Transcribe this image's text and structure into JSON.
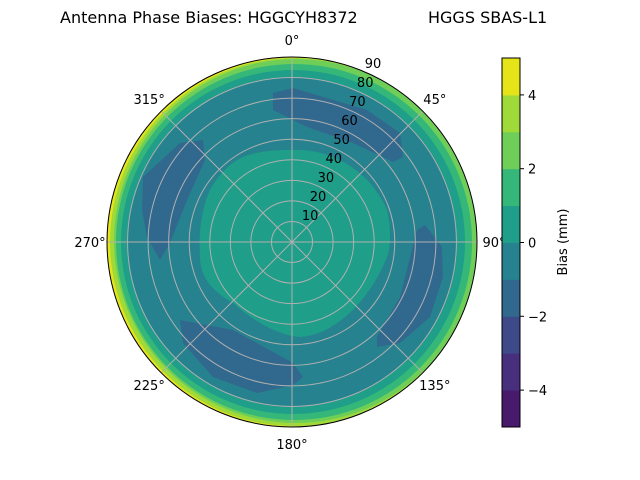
{
  "chart_data": {
    "type": "heatmap",
    "projection": "polar",
    "title": "Antenna Phase Biases: HGGCYH8372",
    "subtitle": "HGGS SBAS-L1",
    "angle_ticks": [
      "0°",
      "45°",
      "90°",
      "135°",
      "180°",
      "225°",
      "270°",
      "315°"
    ],
    "angle_values": [
      0,
      45,
      90,
      135,
      180,
      225,
      270,
      315
    ],
    "angle_direction": "clockwise",
    "angle_zero": "top",
    "radial_ticks": [
      "10",
      "20",
      "30",
      "40",
      "50",
      "60",
      "70",
      "80",
      "90"
    ],
    "radial_values": [
      10,
      20,
      30,
      40,
      50,
      60,
      70,
      80,
      90
    ],
    "rlim": [
      0,
      90
    ],
    "grid": true,
    "colorbar": {
      "label": "Bias (mm)",
      "range": [
        -5,
        5
      ],
      "levels": [
        -5,
        -4,
        -3,
        -2,
        -1,
        0,
        1,
        2,
        3,
        4,
        5
      ],
      "ticks": [
        "−4",
        "−2",
        "0",
        "2",
        "4"
      ],
      "tick_values": [
        -4,
        -2,
        0,
        2,
        4
      ],
      "colormap": "viridis",
      "colors": [
        "#481a6c",
        "#472f7d",
        "#3e4989",
        "#31688e",
        "#26828e",
        "#1f9e89",
        "#35b779",
        "#6ece58",
        "#a0da39",
        "#e5e419"
      ]
    },
    "regions": [
      {
        "level_range": [
          0,
          1
        ],
        "description": "central area out to ~45-50"
      },
      {
        "level_range": [
          -1,
          0
        ],
        "description": "ring ~50-80"
      },
      {
        "level_range": [
          -2,
          -1
        ],
        "description": "four patches near 20°, 300°, 110°, 200° at ~60-75"
      },
      {
        "level_range": [
          1,
          4
        ],
        "description": "outer edge 80-90"
      },
      {
        "level_range": [
          4,
          5
        ],
        "description": "outer edge near 250°"
      }
    ]
  }
}
